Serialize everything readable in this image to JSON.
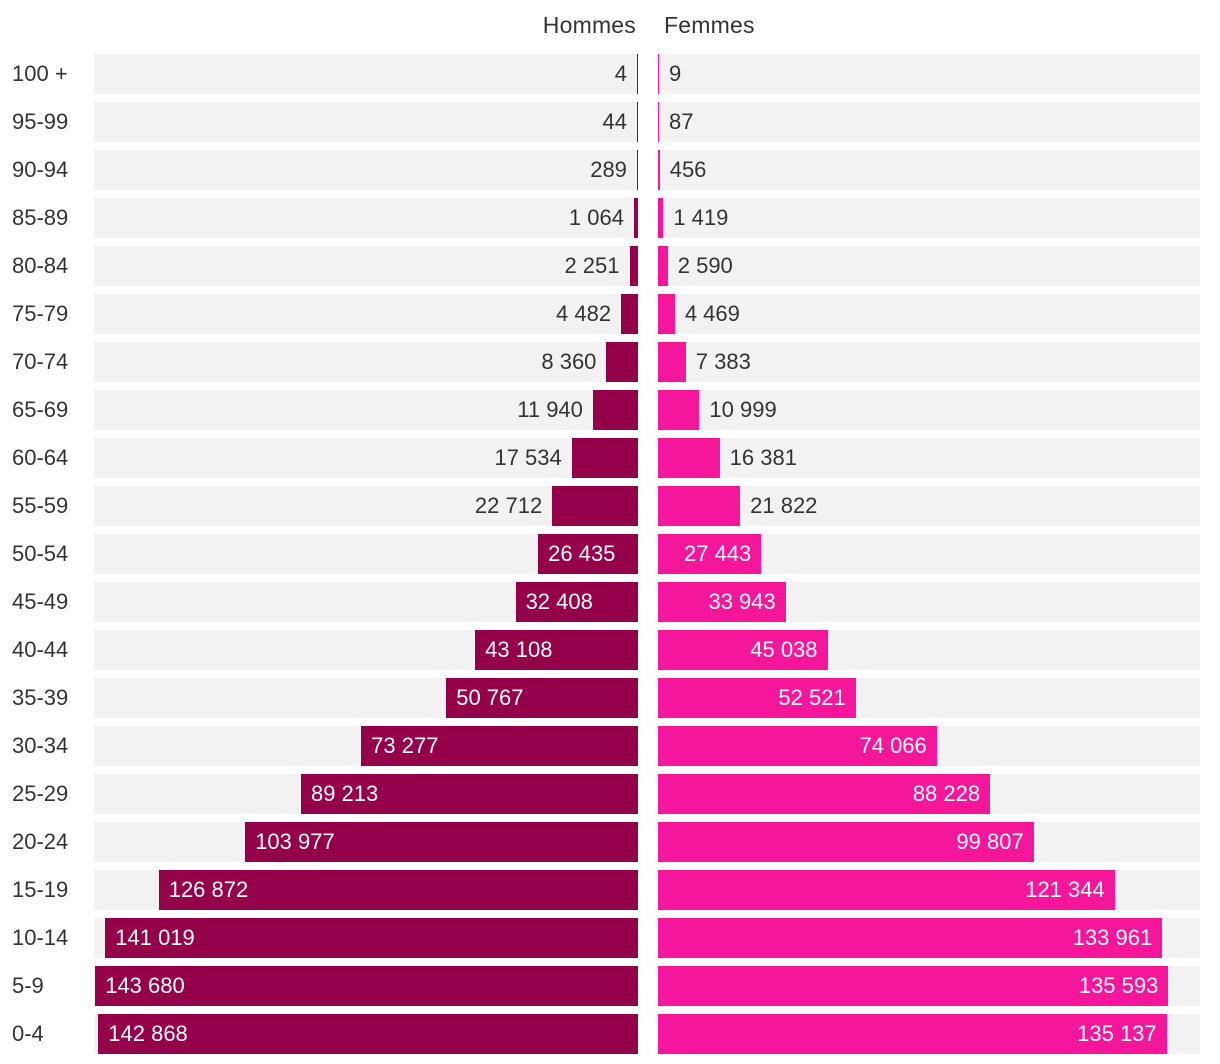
{
  "chart_data": {
    "type": "bar",
    "orientation": "horizontal-pyramid",
    "title": "",
    "headers": {
      "men": "Hommes",
      "women": "Femmes"
    },
    "colors": {
      "men": "#95004b",
      "women": "#f5179b",
      "track": "#f2f2f2"
    },
    "xlim": [
      0,
      144000
    ],
    "categories": [
      "100 +",
      "95-99",
      "90-94",
      "85-89",
      "80-84",
      "75-79",
      "70-74",
      "65-69",
      "60-64",
      "55-59",
      "50-54",
      "45-49",
      "40-44",
      "35-39",
      "30-34",
      "25-29",
      "20-24",
      "15-19",
      "10-14",
      "5-9",
      "0-4"
    ],
    "series": [
      {
        "name": "Hommes",
        "values": [
          4,
          44,
          289,
          1064,
          2251,
          4482,
          8360,
          11940,
          17534,
          22712,
          26435,
          32408,
          43108,
          50767,
          73277,
          89213,
          103977,
          126872,
          141019,
          143680,
          142868
        ],
        "labels": [
          "4",
          "44",
          "289",
          "1 064",
          "2 251",
          "4 482",
          "8 360",
          "11 940",
          "17 534",
          "22 712",
          "26 435",
          "32 408",
          "43 108",
          "50 767",
          "73 277",
          "89 213",
          "103 977",
          "126 872",
          "141 019",
          "143 680",
          "142 868"
        ]
      },
      {
        "name": "Femmes",
        "values": [
          9,
          87,
          456,
          1419,
          2590,
          4469,
          7383,
          10999,
          16381,
          21822,
          27443,
          33943,
          45038,
          52521,
          74066,
          88228,
          99807,
          121344,
          133961,
          135593,
          135137
        ],
        "labels": [
          "9",
          "87",
          "456",
          "1 419",
          "2 590",
          "4 469",
          "7 383",
          "10 999",
          "16 381",
          "21 822",
          "27 443",
          "33 943",
          "45 038",
          "52 521",
          "74 066",
          "88 228",
          "99 807",
          "121 344",
          "133 961",
          "135 593",
          "135 137"
        ]
      }
    ]
  }
}
